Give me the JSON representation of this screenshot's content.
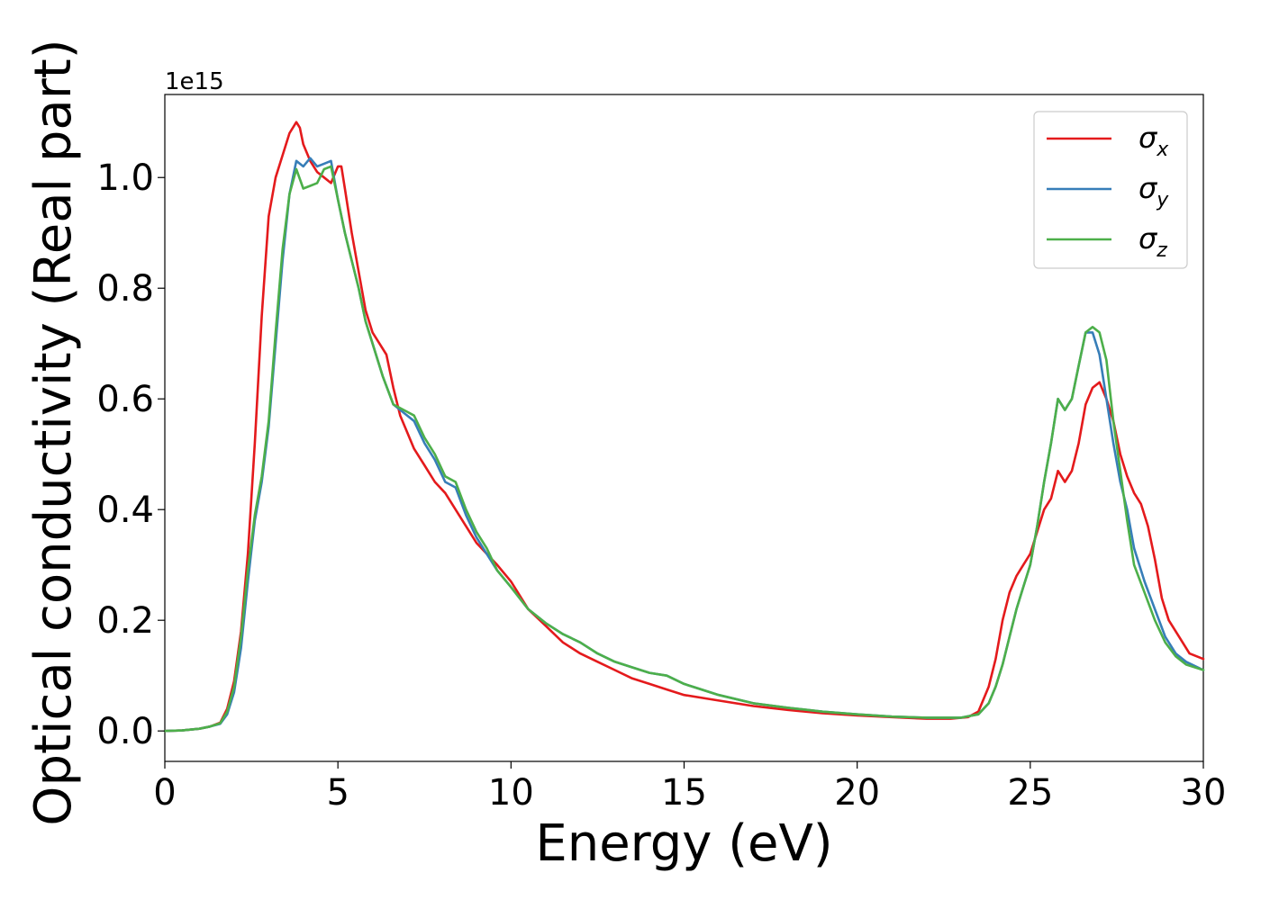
{
  "chart_data": {
    "type": "line",
    "title": "",
    "xlabel": "Energy (eV)",
    "ylabel": "Optical conductivity (Real part)",
    "y_offset_text": "1e15",
    "xlim": [
      0,
      30
    ],
    "ylim": [
      -0.055,
      1.15
    ],
    "xticks": [
      0,
      5,
      10,
      15,
      20,
      25,
      30
    ],
    "xtick_labels": [
      "0",
      "5",
      "10",
      "15",
      "20",
      "25",
      "30"
    ],
    "yticks": [
      0.0,
      0.2,
      0.4,
      0.6,
      0.8,
      1.0
    ],
    "ytick_labels": [
      "0.0",
      "0.2",
      "0.4",
      "0.6",
      "0.8",
      "1.0"
    ],
    "grid": false,
    "legend_position": "top-right",
    "series": [
      {
        "name": "σx",
        "legend_symbol": "σ",
        "legend_subscript": "x",
        "color": "#e41a1c",
        "x": [
          0,
          0.5,
          1.0,
          1.3,
          1.6,
          1.8,
          2.0,
          2.2,
          2.4,
          2.6,
          2.8,
          3.0,
          3.2,
          3.4,
          3.6,
          3.8,
          3.9,
          4.0,
          4.2,
          4.4,
          4.6,
          4.8,
          5.0,
          5.1,
          5.2,
          5.4,
          5.6,
          5.8,
          6.0,
          6.2,
          6.4,
          6.6,
          6.8,
          7.0,
          7.2,
          7.5,
          7.8,
          8.1,
          8.4,
          8.7,
          9.0,
          9.3,
          9.6,
          10.0,
          10.5,
          11.0,
          11.5,
          12.0,
          12.5,
          13.0,
          13.5,
          14.0,
          14.5,
          15.0,
          16.0,
          17.0,
          18.0,
          19.0,
          20.0,
          21.0,
          22.0,
          22.7,
          23.2,
          23.5,
          23.8,
          24.0,
          24.2,
          24.4,
          24.6,
          24.8,
          25.0,
          25.2,
          25.4,
          25.6,
          25.8,
          26.0,
          26.2,
          26.4,
          26.6,
          26.8,
          27.0,
          27.2,
          27.4,
          27.6,
          27.8,
          28.0,
          28.2,
          28.4,
          28.6,
          28.8,
          29.0,
          29.3,
          29.6,
          30.0
        ],
        "y": [
          0.0,
          0.001,
          0.004,
          0.008,
          0.015,
          0.04,
          0.09,
          0.18,
          0.32,
          0.52,
          0.75,
          0.93,
          1.0,
          1.04,
          1.08,
          1.1,
          1.09,
          1.06,
          1.03,
          1.01,
          1.0,
          0.99,
          1.02,
          1.02,
          0.98,
          0.9,
          0.83,
          0.76,
          0.72,
          0.7,
          0.68,
          0.62,
          0.57,
          0.54,
          0.51,
          0.48,
          0.45,
          0.43,
          0.4,
          0.37,
          0.34,
          0.32,
          0.3,
          0.27,
          0.22,
          0.19,
          0.16,
          0.14,
          0.125,
          0.11,
          0.095,
          0.085,
          0.075,
          0.065,
          0.055,
          0.045,
          0.038,
          0.032,
          0.028,
          0.025,
          0.022,
          0.022,
          0.025,
          0.035,
          0.08,
          0.13,
          0.2,
          0.25,
          0.28,
          0.3,
          0.32,
          0.36,
          0.4,
          0.42,
          0.47,
          0.45,
          0.47,
          0.52,
          0.59,
          0.62,
          0.63,
          0.6,
          0.56,
          0.5,
          0.46,
          0.43,
          0.41,
          0.37,
          0.31,
          0.24,
          0.2,
          0.17,
          0.14,
          0.13
        ]
      },
      {
        "name": "σy",
        "legend_symbol": "σ",
        "legend_subscript": "y",
        "color": "#377eb8",
        "x": [
          0,
          0.5,
          1.0,
          1.3,
          1.6,
          1.8,
          2.0,
          2.2,
          2.4,
          2.6,
          2.8,
          3.0,
          3.2,
          3.4,
          3.6,
          3.8,
          4.0,
          4.2,
          4.4,
          4.6,
          4.8,
          5.0,
          5.2,
          5.4,
          5.6,
          5.8,
          6.0,
          6.3,
          6.6,
          6.9,
          7.2,
          7.5,
          7.8,
          8.1,
          8.4,
          8.7,
          9.0,
          9.3,
          9.6,
          10.0,
          10.5,
          11.0,
          11.5,
          12.0,
          12.5,
          13.0,
          13.5,
          14.0,
          14.5,
          15.0,
          16.0,
          17.0,
          18.0,
          19.0,
          20.0,
          21.0,
          22.0,
          23.0,
          23.5,
          23.8,
          24.0,
          24.2,
          24.4,
          24.6,
          24.8,
          25.0,
          25.2,
          25.4,
          25.6,
          25.8,
          26.0,
          26.2,
          26.4,
          26.6,
          26.8,
          27.0,
          27.2,
          27.4,
          27.6,
          27.8,
          28.0,
          28.3,
          28.6,
          28.9,
          29.2,
          29.5,
          30.0
        ],
        "y": [
          0.0,
          0.001,
          0.004,
          0.008,
          0.013,
          0.03,
          0.07,
          0.15,
          0.27,
          0.38,
          0.45,
          0.55,
          0.7,
          0.85,
          0.97,
          1.03,
          1.02,
          1.035,
          1.02,
          1.025,
          1.03,
          0.96,
          0.9,
          0.85,
          0.8,
          0.74,
          0.7,
          0.64,
          0.59,
          0.575,
          0.56,
          0.52,
          0.49,
          0.45,
          0.44,
          0.39,
          0.35,
          0.32,
          0.29,
          0.26,
          0.22,
          0.195,
          0.175,
          0.16,
          0.14,
          0.125,
          0.115,
          0.105,
          0.1,
          0.085,
          0.065,
          0.05,
          0.042,
          0.035,
          0.03,
          0.026,
          0.024,
          0.024,
          0.03,
          0.05,
          0.08,
          0.12,
          0.17,
          0.22,
          0.26,
          0.3,
          0.37,
          0.45,
          0.52,
          0.6,
          0.58,
          0.6,
          0.66,
          0.72,
          0.72,
          0.68,
          0.6,
          0.52,
          0.45,
          0.4,
          0.33,
          0.27,
          0.22,
          0.17,
          0.14,
          0.125,
          0.11
        ]
      },
      {
        "name": "σz",
        "legend_symbol": "σ",
        "legend_subscript": "z",
        "color": "#4daf4a",
        "x": [
          0,
          0.5,
          1.0,
          1.3,
          1.6,
          1.8,
          2.0,
          2.2,
          2.4,
          2.6,
          2.8,
          3.0,
          3.2,
          3.4,
          3.6,
          3.8,
          4.0,
          4.2,
          4.4,
          4.6,
          4.8,
          5.0,
          5.2,
          5.4,
          5.6,
          5.8,
          6.0,
          6.3,
          6.6,
          6.9,
          7.2,
          7.5,
          7.8,
          8.1,
          8.4,
          8.7,
          9.0,
          9.3,
          9.6,
          10.0,
          10.5,
          11.0,
          11.5,
          12.0,
          12.5,
          13.0,
          13.5,
          14.0,
          14.5,
          15.0,
          16.0,
          17.0,
          18.0,
          19.0,
          20.0,
          21.0,
          22.0,
          23.0,
          23.5,
          23.8,
          24.0,
          24.2,
          24.4,
          24.6,
          24.8,
          25.0,
          25.2,
          25.4,
          25.6,
          25.8,
          26.0,
          26.2,
          26.4,
          26.6,
          26.8,
          27.0,
          27.2,
          27.4,
          27.6,
          27.8,
          28.0,
          28.3,
          28.6,
          28.9,
          29.2,
          29.5,
          30.0
        ],
        "y": [
          0.0,
          0.001,
          0.004,
          0.008,
          0.014,
          0.035,
          0.08,
          0.17,
          0.29,
          0.39,
          0.46,
          0.56,
          0.72,
          0.87,
          0.97,
          1.015,
          0.98,
          0.985,
          0.99,
          1.015,
          1.02,
          0.96,
          0.9,
          0.85,
          0.8,
          0.74,
          0.7,
          0.64,
          0.59,
          0.58,
          0.57,
          0.53,
          0.5,
          0.46,
          0.45,
          0.4,
          0.36,
          0.33,
          0.29,
          0.26,
          0.22,
          0.195,
          0.175,
          0.16,
          0.14,
          0.125,
          0.115,
          0.105,
          0.1,
          0.085,
          0.065,
          0.05,
          0.042,
          0.035,
          0.03,
          0.026,
          0.024,
          0.024,
          0.03,
          0.05,
          0.08,
          0.12,
          0.17,
          0.22,
          0.26,
          0.3,
          0.37,
          0.45,
          0.52,
          0.6,
          0.58,
          0.6,
          0.66,
          0.72,
          0.73,
          0.72,
          0.67,
          0.56,
          0.47,
          0.38,
          0.3,
          0.25,
          0.2,
          0.16,
          0.135,
          0.12,
          0.11
        ]
      }
    ]
  }
}
